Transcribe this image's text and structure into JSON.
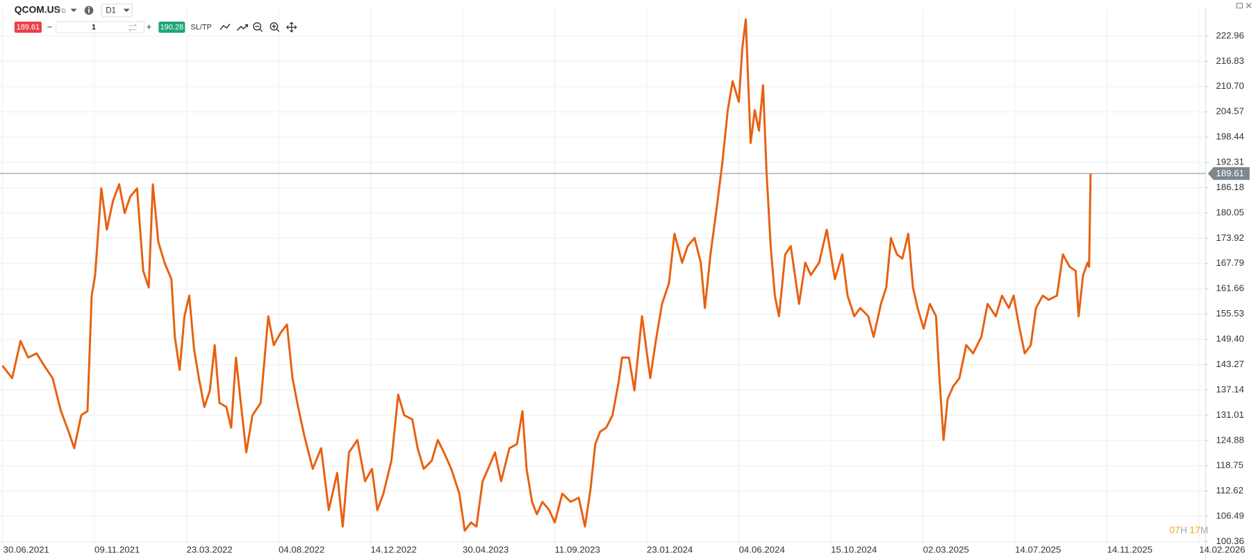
{
  "toolbar": {
    "symbol": "QCOM.US",
    "instrument": "CFD",
    "timeframe": "D1",
    "sell": "189.61",
    "minus": "−",
    "quantity": "1",
    "plus": "+",
    "buy": "190.28",
    "sltp": "SL/TP"
  },
  "countdown": {
    "hours": "07",
    "hours_unit": "H",
    "minutes": "17",
    "minutes_unit": "M"
  },
  "chart_data": {
    "type": "line",
    "color": "#e8600f",
    "grid": true,
    "price_line": 189.61,
    "ylim": [
      97.84,
      229.36
    ],
    "yticks": [
      222.96,
      216.83,
      {
        "value": 210.7,
        "label": "210.70"
      },
      204.57,
      198.44,
      192.31,
      186.18,
      180.05,
      173.92,
      167.79,
      161.66,
      155.53,
      {
        "value": 149.4,
        "label": "149.40"
      },
      143.27,
      137.14,
      131.01,
      124.88,
      118.75,
      112.62,
      106.49,
      100.36
    ],
    "xlim": [
      "30.06.2021",
      "14.02.2026"
    ],
    "xticks": [
      "30.06.2021",
      "09.11.2021",
      "23.03.2022",
      "04.08.2022",
      "14.12.2022",
      "30.04.2023",
      "11.09.2023",
      "23.01.2024",
      "04.06.2024",
      "15.10.2024",
      "02.03.2025",
      "14.07.2025",
      "14.11.2025",
      "14.02.2026"
    ],
    "x": [
      "30.06.2021",
      "14.07.2021",
      "26.07.2021",
      "06.08.2021",
      "18.08.2021",
      "29.08.2021",
      "10.09.2021",
      "22.09.2021",
      "03.10.2021",
      "11.10.2021",
      "21.10.2021",
      "30.10.2021",
      "05.11.2021",
      "10.11.2021",
      "19.11.2021",
      "27.11.2021",
      "06.12.2021",
      "15.12.2021",
      "23.12.2021",
      "31.12.2021",
      "10.01.2022",
      "19.01.2022",
      "27.01.2022",
      "02.02.2022",
      "10.02.2022",
      "19.02.2022",
      "01.03.2022",
      "06.03.2022",
      "13.03.2022",
      "20.03.2022",
      "27.03.2022",
      "03.04.2022",
      "10.04.2022",
      "18.04.2022",
      "26.04.2022",
      "03.05.2022",
      "10.05.2022",
      "20.05.2022",
      "27.05.2022",
      "03.06.2022",
      "10.06.2022",
      "18.06.2022",
      "27.06.2022",
      "09.07.2022",
      "20.07.2022",
      "28.07.2022",
      "07.08.2022",
      "16.08.2022",
      "24.08.2022",
      "01.09.2022",
      "10.09.2022",
      "22.09.2022",
      "04.10.2022",
      "15.10.2022",
      "27.10.2022",
      "04.11.2022",
      "13.11.2022",
      "25.11.2022",
      "06.12.2022",
      "16.12.2022",
      "24.12.2022",
      "02.01.2023",
      "14.01.2023",
      "24.01.2023",
      "02.02.2023",
      "14.02.2023",
      "22.02.2023",
      "03.03.2023",
      "15.03.2023",
      "24.03.2023",
      "02.04.2023",
      "13.04.2023",
      "25.04.2023",
      "03.05.2023",
      "12.05.2023",
      "20.05.2023",
      "29.05.2023",
      "06.06.2023",
      "16.06.2023",
      "25.06.2023",
      "07.07.2023",
      "18.07.2023",
      "26.07.2023",
      "01.08.2023",
      "09.08.2023",
      "16.08.2023",
      "24.08.2023",
      "03.09.2023",
      "11.09.2023",
      "22.09.2023",
      "04.10.2023",
      "16.10.2023",
      "25.10.2023",
      "02.11.2023",
      "09.11.2023",
      "16.11.2023",
      "25.11.2023",
      "04.12.2023",
      "13.12.2023",
      "18.12.2023",
      "28.12.2023",
      "05.01.2024",
      "16.01.2024",
      "28.01.2024",
      "05.02.2024",
      "14.02.2024",
      "24.02.2024",
      "03.03.2024",
      "14.03.2024",
      "22.03.2024",
      "01.04.2024",
      "10.04.2024",
      "16.04.2024",
      "24.04.2024",
      "02.05.2024",
      "11.05.2024",
      "19.05.2024",
      "26.05.2024",
      "04.06.2024",
      "09.06.2024",
      "14.06.2024",
      "21.06.2024",
      "27.06.2024",
      "03.07.2024",
      "09.07.2024",
      "14.07.2024",
      "20.07.2024",
      "26.07.2024",
      "01.08.2024",
      "10.08.2024",
      "18.08.2024",
      "30.08.2024",
      "08.09.2024",
      "16.09.2024",
      "28.09.2024",
      "09.10.2024",
      "21.10.2024",
      "01.11.2024",
      "09.11.2024",
      "19.11.2024",
      "28.11.2024",
      "10.12.2024",
      "18.12.2024",
      "29.12.2024",
      "06.01.2025",
      "13.01.2025",
      "22.01.2025",
      "30.01.2025",
      "08.02.2025",
      "15.02.2025",
      "22.02.2025",
      "03.03.2025",
      "12.03.2025",
      "21.03.2025",
      "26.03.2025",
      "01.04.2025",
      "07.04.2025",
      "15.04.2025",
      "24.04.2025",
      "04.05.2025",
      "14.05.2025",
      "26.05.2025",
      "04.06.2025",
      "16.06.2025",
      "25.06.2025",
      "05.07.2025",
      "12.07.2025",
      "19.07.2025",
      "27.07.2025",
      "04.08.2025",
      "11.08.2025",
      "20.08.2025",
      "28.08.2025",
      "08.09.2025",
      "16.09.2025",
      "25.09.2025",
      "03.10.2025",
      "07.10.2025",
      "13.10.2025",
      "19.10.2025",
      "21.10.2025",
      "23.10.2025"
    ],
    "values": [
      143,
      140,
      149,
      145,
      146,
      143,
      140,
      132,
      127,
      123,
      131,
      132,
      160,
      165,
      186,
      176,
      183,
      187,
      180,
      184,
      186,
      166,
      162,
      187,
      173,
      168,
      164,
      150,
      142,
      155,
      160,
      147,
      140,
      133,
      137,
      148,
      134,
      133,
      128,
      145,
      134,
      122,
      131,
      134,
      155,
      148,
      151,
      153,
      140,
      133,
      126,
      118,
      123,
      108,
      117,
      104,
      122,
      125,
      115,
      118,
      108,
      112,
      120,
      136,
      131,
      130,
      123,
      118,
      120,
      125,
      122,
      118,
      112,
      103,
      105,
      104,
      115,
      118,
      122,
      115,
      123,
      124,
      132,
      118,
      110,
      107,
      110,
      108,
      105,
      112,
      110,
      111,
      104,
      113,
      124,
      127,
      128,
      131,
      139,
      145,
      145,
      137,
      155,
      140,
      149,
      158,
      163,
      175,
      168,
      172,
      174,
      168,
      157,
      170,
      180,
      192,
      205,
      212,
      207,
      220,
      227,
      197,
      205,
      200,
      211,
      190,
      172,
      160,
      155,
      170,
      172,
      158,
      168,
      165,
      168,
      176,
      164,
      170,
      160,
      155,
      157,
      155,
      150,
      158,
      162,
      174,
      170,
      169,
      175,
      162,
      157,
      152,
      158,
      155,
      140,
      125,
      135,
      138,
      140,
      148,
      146,
      150,
      158,
      155,
      160,
      157,
      160,
      153,
      146,
      148,
      157,
      160,
      159,
      160,
      170,
      167,
      166,
      155,
      165,
      168,
      167,
      189.61
    ]
  }
}
